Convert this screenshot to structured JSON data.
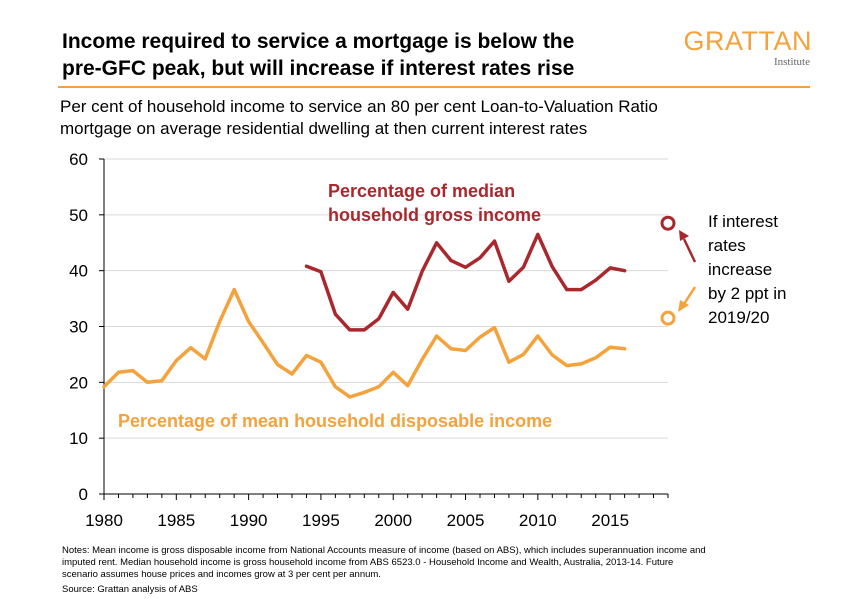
{
  "header": {
    "title_line1": "Income required to service a mortgage is below the",
    "title_line2": "pre-GFC peak, but will increase if interest rates rise",
    "logo_word": "GRATTAN",
    "logo_sub": "Institute",
    "subtitle_line1": "Per cent of household income to service an 80 per cent Loan-to-Valuation Ratio",
    "subtitle_line2": "mortgage on average residential dwelling at then current interest rates"
  },
  "colors": {
    "orange": "#f4a23c",
    "red": "#a8282e",
    "axis": "#000000",
    "gridline": "#d9d9d9",
    "rule": "#f4a23c"
  },
  "chart_data": {
    "type": "line",
    "xlim": [
      1980,
      2019
    ],
    "ylim": [
      0,
      60
    ],
    "x_ticks": [
      1980,
      1985,
      1990,
      1995,
      2000,
      2005,
      2010,
      2015
    ],
    "y_ticks": [
      0,
      10,
      20,
      30,
      40,
      50,
      60
    ],
    "grid": "horizontal",
    "series": [
      {
        "name": "Percentage of mean household disposable income",
        "color": "#f4a23c",
        "x": [
          1980,
          1981,
          1982,
          1983,
          1984,
          1985,
          1986,
          1987,
          1988,
          1989,
          1990,
          1991,
          1992,
          1993,
          1994,
          1995,
          1996,
          1997,
          1998,
          1999,
          2000,
          2001,
          2002,
          2003,
          2004,
          2005,
          2006,
          2007,
          2008,
          2009,
          2010,
          2011,
          2012,
          2013,
          2014,
          2015,
          2016
        ],
        "y": [
          19.2,
          21.8,
          22.1,
          20.0,
          20.3,
          23.9,
          26.2,
          24.2,
          30.9,
          36.6,
          30.9,
          27.1,
          23.2,
          21.5,
          24.8,
          23.6,
          19.2,
          17.4,
          18.2,
          19.2,
          21.8,
          19.4,
          24.1,
          28.3,
          26.0,
          25.7,
          28.1,
          29.8,
          23.6,
          25.0,
          28.3,
          24.9,
          23.0,
          23.3,
          24.4,
          26.3,
          26.0
        ]
      },
      {
        "name": "Percentage of median household gross income",
        "color": "#a8282e",
        "x": [
          1994,
          1995,
          1996,
          1997,
          1998,
          1999,
          2000,
          2001,
          2002,
          2003,
          2004,
          2005,
          2006,
          2007,
          2008,
          2009,
          2010,
          2011,
          2012,
          2013,
          2014,
          2015,
          2016
        ],
        "y": [
          40.8,
          39.8,
          32.2,
          29.4,
          29.4,
          31.4,
          36.1,
          33.1,
          39.9,
          45.0,
          41.8,
          40.6,
          42.3,
          45.3,
          38.1,
          40.6,
          46.5,
          40.7,
          36.6,
          36.6,
          38.3,
          40.5,
          40.0
        ]
      }
    ],
    "future_points": [
      {
        "series": "Percentage of median household gross income",
        "x": 2019,
        "y": 48.5
      },
      {
        "series": "Percentage of mean household disposable income",
        "x": 2019,
        "y": 31.5
      }
    ],
    "annotation": [
      "If interest",
      "rates",
      "increase",
      "by 2 ppt in",
      "2019/20"
    ]
  },
  "notes": {
    "line1": "Notes: Mean income is gross disposable income from National Accounts measure of income (based on ABS), which includes superannuation income and",
    "line2": "imputed rent. Median household income is gross household income from ABS 6523.0 - Household Income and Wealth, Australia, 2013-14. Future",
    "line3": "scenario assumes house prices and incomes grow at 3 per cent per annum.",
    "source": "Source: Grattan analysis of ABS"
  },
  "labels": {
    "median_line1": "Percentage of median",
    "median_line2": "household gross income",
    "mean_label": "Percentage of mean household disposable income"
  }
}
